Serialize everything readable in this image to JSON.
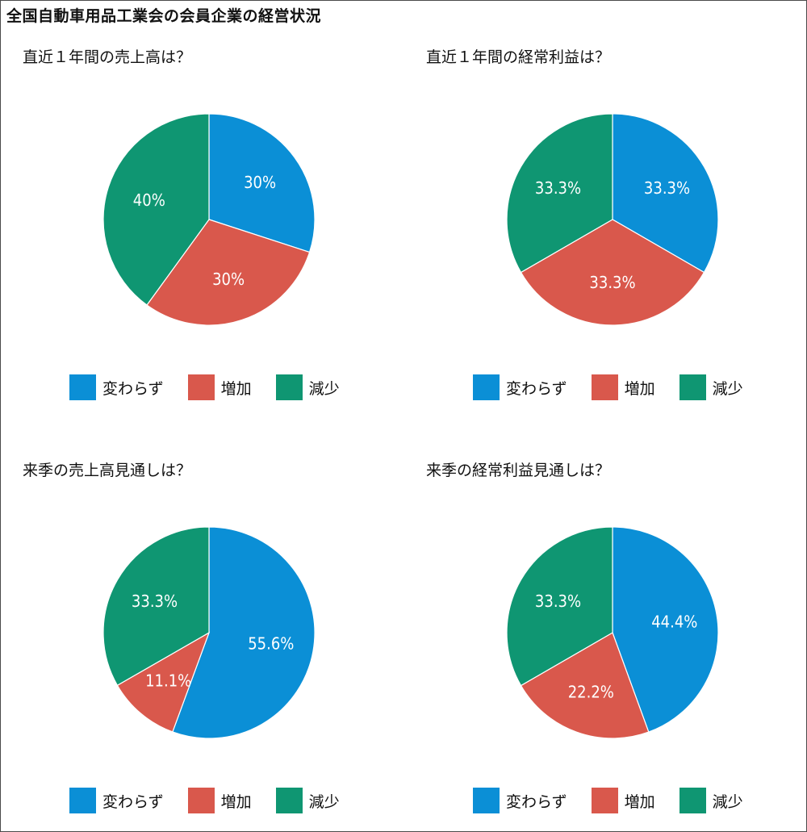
{
  "title": "全国自動車用品工業会の会員企業の経営状況",
  "legend": [
    {
      "label": "変わらず",
      "color": "#0b8fd6"
    },
    {
      "label": "増加",
      "color": "#d9584c"
    },
    {
      "label": "減少",
      "color": "#0f9672"
    }
  ],
  "chart_data": [
    {
      "type": "pie",
      "title": "直近１年間の売上高は？",
      "categories": [
        "変わらず",
        "増加",
        "減少"
      ],
      "values": [
        30,
        30,
        40
      ],
      "labels": [
        "30%",
        "30%",
        "40%"
      ],
      "colors": [
        "#0b8fd6",
        "#d9584c",
        "#0f9672"
      ]
    },
    {
      "type": "pie",
      "title": "直近１年間の経常利益は？",
      "categories": [
        "変わらず",
        "増加",
        "減少"
      ],
      "values": [
        33.3,
        33.3,
        33.3
      ],
      "labels": [
        "33.3%",
        "33.3%",
        "33.3%"
      ],
      "colors": [
        "#0b8fd6",
        "#d9584c",
        "#0f9672"
      ]
    },
    {
      "type": "pie",
      "title": "来季の売上高見通しは？",
      "categories": [
        "変わらず",
        "増加",
        "減少"
      ],
      "values": [
        55.6,
        11.1,
        33.3
      ],
      "labels": [
        "55.6%",
        "11.1%",
        "33.3%"
      ],
      "colors": [
        "#0b8fd6",
        "#d9584c",
        "#0f9672"
      ]
    },
    {
      "type": "pie",
      "title": "来季の経常利益見通しは？",
      "categories": [
        "変わらず",
        "増加",
        "減少"
      ],
      "values": [
        44.4,
        22.2,
        33.3
      ],
      "labels": [
        "44.4%",
        "22.2%",
        "33.3%"
      ],
      "colors": [
        "#0b8fd6",
        "#d9584c",
        "#0f9672"
      ]
    }
  ]
}
